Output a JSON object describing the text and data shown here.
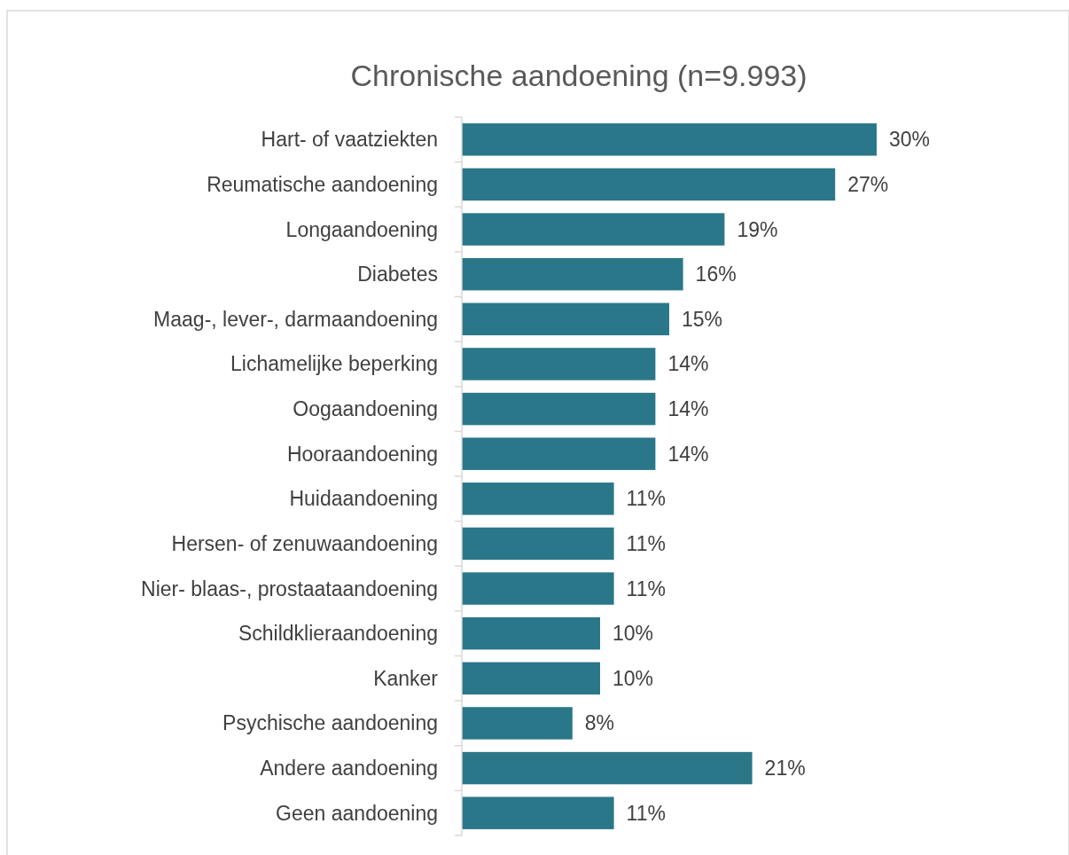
{
  "chart_data": {
    "type": "bar",
    "orientation": "horizontal",
    "title": "Chronische aandoening (n=9.993)",
    "categories": [
      "Hart- of vaatziekten",
      "Reumatische aandoening",
      "Longaandoening",
      "Diabetes",
      "Maag-, lever-, darmaandoening",
      "Lichamelijke beperking",
      "Oogaandoening",
      "Hooraandoening",
      "Huidaandoening",
      "Hersen- of zenuwaandoening",
      "Nier- blaas-, prostaataandoening",
      "Schildklieraandoening",
      "Kanker",
      "Psychische aandoening",
      "Andere aandoening",
      "Geen aandoening"
    ],
    "values": [
      30,
      27,
      19,
      16,
      15,
      14,
      14,
      14,
      11,
      11,
      11,
      10,
      10,
      8,
      21,
      11
    ],
    "value_labels": [
      "30%",
      "27%",
      "19%",
      "16%",
      "15%",
      "14%",
      "14%",
      "14%",
      "11%",
      "11%",
      "11%",
      "10%",
      "10%",
      "8%",
      "21%",
      "11%"
    ],
    "color": "#2a7789"
  }
}
